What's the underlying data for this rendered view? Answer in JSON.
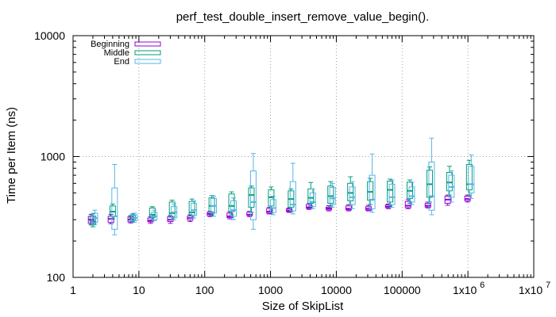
{
  "chart_data": {
    "type": "box",
    "title": "perf_test_double_insert_remove_value_begin().",
    "xlabel": "Size of SkipList",
    "ylabel": "Time per Item (ns)",
    "x_scale": "log",
    "y_scale": "log",
    "xlim": [
      1,
      10000000
    ],
    "ylim": [
      100,
      10000
    ],
    "grid": true,
    "legend_position": "top-left",
    "x_ticks": [
      {
        "value": 1,
        "label": "1"
      },
      {
        "value": 10,
        "label": "10"
      },
      {
        "value": 100,
        "label": "100"
      },
      {
        "value": 1000,
        "label": "1000"
      },
      {
        "value": 10000,
        "label": "10000"
      },
      {
        "value": 100000,
        "label": "100000"
      },
      {
        "value": 1000000,
        "label": "1x10"
      },
      {
        "value": 10000000,
        "label": "1x10"
      }
    ],
    "x_tick_exponents": [
      "",
      "",
      "",
      "",
      "",
      "",
      "6",
      "7"
    ],
    "y_ticks": [
      {
        "value": 100,
        "label": "100"
      },
      {
        "value": 1000,
        "label": "1000"
      },
      {
        "value": 10000,
        "label": "10000"
      }
    ],
    "series": [
      {
        "name": "Beginning",
        "color": "#9400d3",
        "offset": 0.94,
        "points": [
          {
            "x": 2,
            "min": 272,
            "q1": 280,
            "median": 300,
            "q3": 320,
            "max": 332
          },
          {
            "x": 4,
            "min": 278,
            "q1": 285,
            "median": 305,
            "q3": 320,
            "max": 332
          },
          {
            "x": 8,
            "min": 282,
            "q1": 288,
            "median": 300,
            "q3": 318,
            "max": 325
          },
          {
            "x": 16,
            "min": 280,
            "q1": 288,
            "median": 295,
            "q3": 310,
            "max": 318
          },
          {
            "x": 32,
            "min": 280,
            "q1": 290,
            "median": 300,
            "q3": 318,
            "max": 325
          },
          {
            "x": 64,
            "min": 290,
            "q1": 298,
            "median": 310,
            "q3": 322,
            "max": 330
          },
          {
            "x": 128,
            "min": 318,
            "q1": 325,
            "median": 335,
            "q3": 345,
            "max": 352
          },
          {
            "x": 256,
            "min": 305,
            "q1": 312,
            "median": 320,
            "q3": 340,
            "max": 348
          },
          {
            "x": 512,
            "min": 318,
            "q1": 325,
            "median": 330,
            "q3": 345,
            "max": 352
          },
          {
            "x": 1024,
            "min": 335,
            "q1": 340,
            "median": 350,
            "q3": 372,
            "max": 380
          },
          {
            "x": 2048,
            "min": 345,
            "q1": 350,
            "median": 358,
            "q3": 370,
            "max": 375
          },
          {
            "x": 4096,
            "min": 365,
            "q1": 372,
            "median": 380,
            "q3": 400,
            "max": 410
          },
          {
            "x": 8192,
            "min": 355,
            "q1": 362,
            "median": 372,
            "q3": 382,
            "max": 392
          },
          {
            "x": 16384,
            "min": 355,
            "q1": 362,
            "median": 370,
            "q3": 390,
            "max": 400
          },
          {
            "x": 32768,
            "min": 355,
            "q1": 360,
            "median": 370,
            "q3": 385,
            "max": 395
          },
          {
            "x": 65536,
            "min": 370,
            "q1": 378,
            "median": 385,
            "q3": 398,
            "max": 405
          },
          {
            "x": 131072,
            "min": 370,
            "q1": 378,
            "median": 392,
            "q3": 425,
            "max": 440
          },
          {
            "x": 262144,
            "min": 375,
            "q1": 382,
            "median": 392,
            "q3": 410,
            "max": 420
          },
          {
            "x": 524288,
            "min": 395,
            "q1": 410,
            "median": 440,
            "q3": 470,
            "max": 480
          },
          {
            "x": 1048576,
            "min": 420,
            "q1": 430,
            "median": 445,
            "q3": 470,
            "max": 480
          }
        ]
      },
      {
        "name": "Middle",
        "color": "#009e73",
        "offset": 1.0,
        "points": [
          {
            "x": 2,
            "min": 262,
            "q1": 272,
            "median": 290,
            "q3": 322,
            "max": 335
          },
          {
            "x": 4,
            "min": 305,
            "q1": 320,
            "median": 350,
            "q3": 390,
            "max": 405
          },
          {
            "x": 8,
            "min": 290,
            "q1": 298,
            "median": 310,
            "q3": 325,
            "max": 335
          },
          {
            "x": 16,
            "min": 300,
            "q1": 312,
            "median": 330,
            "q3": 375,
            "max": 385
          },
          {
            "x": 32,
            "min": 300,
            "q1": 315,
            "median": 340,
            "q3": 420,
            "max": 435
          },
          {
            "x": 64,
            "min": 312,
            "q1": 325,
            "median": 345,
            "q3": 425,
            "max": 445
          },
          {
            "x": 128,
            "min": 330,
            "q1": 345,
            "median": 390,
            "q3": 455,
            "max": 475
          },
          {
            "x": 256,
            "min": 330,
            "q1": 350,
            "median": 390,
            "q3": 490,
            "max": 510
          },
          {
            "x": 512,
            "min": 345,
            "q1": 380,
            "median": 480,
            "q3": 550,
            "max": 570
          },
          {
            "x": 1024,
            "min": 360,
            "q1": 390,
            "median": 460,
            "q3": 530,
            "max": 560
          },
          {
            "x": 2048,
            "min": 355,
            "q1": 380,
            "median": 445,
            "q3": 520,
            "max": 540
          },
          {
            "x": 4096,
            "min": 390,
            "q1": 410,
            "median": 455,
            "q3": 540,
            "max": 610
          },
          {
            "x": 8192,
            "min": 390,
            "q1": 410,
            "median": 470,
            "q3": 570,
            "max": 620
          },
          {
            "x": 16384,
            "min": 400,
            "q1": 430,
            "median": 500,
            "q3": 600,
            "max": 680
          },
          {
            "x": 32768,
            "min": 400,
            "q1": 435,
            "median": 510,
            "q3": 620,
            "max": 660
          },
          {
            "x": 65536,
            "min": 390,
            "q1": 420,
            "median": 530,
            "q3": 625,
            "max": 650
          },
          {
            "x": 131072,
            "min": 410,
            "q1": 450,
            "median": 520,
            "q3": 615,
            "max": 640
          },
          {
            "x": 262144,
            "min": 420,
            "q1": 460,
            "median": 590,
            "q3": 770,
            "max": 820
          },
          {
            "x": 524288,
            "min": 480,
            "q1": 520,
            "median": 610,
            "q3": 740,
            "max": 830
          },
          {
            "x": 1048576,
            "min": 480,
            "q1": 530,
            "median": 590,
            "q3": 860,
            "max": 930
          }
        ]
      },
      {
        "name": "End",
        "color": "#56b4e9",
        "offset": 1.07,
        "points": [
          {
            "x": 2,
            "min": 275,
            "q1": 285,
            "median": 310,
            "q3": 340,
            "max": 360
          },
          {
            "x": 4,
            "min": 225,
            "q1": 250,
            "median": 320,
            "q3": 550,
            "max": 860
          },
          {
            "x": 8,
            "min": 285,
            "q1": 295,
            "median": 310,
            "q3": 330,
            "max": 340
          },
          {
            "x": 16,
            "min": 295,
            "q1": 300,
            "median": 320,
            "q3": 345,
            "max": 360
          },
          {
            "x": 32,
            "min": 300,
            "q1": 312,
            "median": 345,
            "q3": 385,
            "max": 405
          },
          {
            "x": 64,
            "min": 310,
            "q1": 325,
            "median": 360,
            "q3": 410,
            "max": 430
          },
          {
            "x": 128,
            "min": 320,
            "q1": 340,
            "median": 390,
            "q3": 450,
            "max": 470
          },
          {
            "x": 256,
            "min": 300,
            "q1": 320,
            "median": 360,
            "q3": 430,
            "max": 455
          },
          {
            "x": 512,
            "min": 250,
            "q1": 300,
            "median": 420,
            "q3": 760,
            "max": 1060
          },
          {
            "x": 1024,
            "min": 330,
            "q1": 345,
            "median": 375,
            "q3": 440,
            "max": 470
          },
          {
            "x": 2048,
            "min": 335,
            "q1": 355,
            "median": 400,
            "q3": 620,
            "max": 880
          },
          {
            "x": 4096,
            "min": 370,
            "q1": 385,
            "median": 420,
            "q3": 500,
            "max": 540
          },
          {
            "x": 8192,
            "min": 380,
            "q1": 400,
            "median": 450,
            "q3": 555,
            "max": 600
          },
          {
            "x": 16384,
            "min": 370,
            "q1": 400,
            "median": 460,
            "q3": 560,
            "max": 620
          },
          {
            "x": 32768,
            "min": 345,
            "q1": 370,
            "median": 440,
            "q3": 700,
            "max": 1050
          },
          {
            "x": 65536,
            "min": 380,
            "q1": 400,
            "median": 460,
            "q3": 590,
            "max": 640
          },
          {
            "x": 131072,
            "min": 400,
            "q1": 420,
            "median": 470,
            "q3": 560,
            "max": 610
          },
          {
            "x": 262144,
            "min": 330,
            "q1": 360,
            "median": 470,
            "q3": 900,
            "max": 1420
          },
          {
            "x": 524288,
            "min": 420,
            "q1": 460,
            "median": 560,
            "q3": 700,
            "max": 760
          },
          {
            "x": 1048576,
            "min": 450,
            "q1": 500,
            "median": 590,
            "q3": 830,
            "max": 1030
          }
        ]
      }
    ]
  }
}
